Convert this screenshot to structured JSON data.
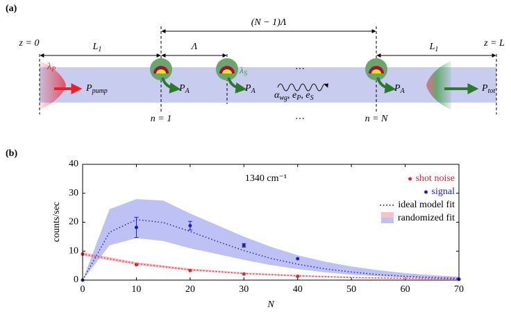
{
  "panel_a": {
    "label": "(a)",
    "z_start": "z = 0",
    "z_end": "z = L",
    "span_total": "(N − 1)Λ",
    "period": "Λ",
    "length_left": {
      "base": "L",
      "sub": "1"
    },
    "length_right": {
      "base": "L",
      "sub": "1"
    },
    "pump_wavelength": {
      "base": "λ",
      "sub": "P"
    },
    "stokes_wavelength": {
      "base": "λ",
      "sub": "S"
    },
    "pump_power": {
      "base": "P",
      "sub": "pump"
    },
    "emitted_power": {
      "base": "P",
      "sub": "A"
    },
    "total_power": {
      "base": "P",
      "sub": "tot"
    },
    "loss": [
      {
        "base": "α",
        "sub": "wg"
      },
      {
        "base": ", e",
        "sub": "P"
      },
      {
        "base": ", e",
        "sub": "S"
      }
    ],
    "ellipsis": "⋯",
    "first_index": "n = 1",
    "last_index": "n = N"
  },
  "chart_data": {
    "type": "scatter",
    "label": "(b)",
    "annotation": "1340 cm⁻¹",
    "xlabel": "N",
    "ylabel": "counts/sec",
    "xlim": [
      0,
      70
    ],
    "xticks": [
      0,
      10,
      20,
      30,
      40,
      50,
      60,
      70
    ],
    "ylim": [
      0,
      40
    ],
    "yticks": [
      0,
      10,
      20,
      30,
      40
    ],
    "legend": "upper right",
    "series": [
      {
        "name": "shot noise",
        "color": "#e8202a",
        "x": [
          0,
          10,
          20,
          30,
          40,
          70
        ],
        "values": [
          9,
          5.3,
          3.3,
          2.1,
          1.3,
          0.3
        ],
        "errors": [
          null,
          null,
          null,
          null,
          null,
          null
        ]
      },
      {
        "name": "signal",
        "color": "#1a1adb",
        "x": [
          0,
          10,
          20,
          30,
          40,
          70
        ],
        "values": [
          0,
          18.2,
          18.8,
          12,
          7.4,
          0.3
        ],
        "errors": [
          null,
          3.5,
          1.5,
          0.6,
          null,
          null
        ]
      }
    ],
    "fits": {
      "name": "ideal model fit",
      "curves": [
        {
          "color": "#e8202a",
          "x": [
            0,
            10,
            20,
            30,
            40,
            50,
            60,
            70
          ],
          "values": [
            9,
            5.7,
            3.6,
            2.3,
            1.5,
            0.9,
            0.6,
            0.4
          ]
        },
        {
          "color": "#1a1adb",
          "x": [
            0,
            5,
            10,
            15,
            20,
            25,
            30,
            35,
            40,
            45,
            50,
            55,
            60,
            65,
            70
          ],
          "values": [
            0,
            16.5,
            20.9,
            19.9,
            16.8,
            13.4,
            10.2,
            7.5,
            5.5,
            3.9,
            2.8,
            1.9,
            1.3,
            0.9,
            0.6
          ]
        }
      ]
    },
    "bands": {
      "name": "randomized fit",
      "areas": [
        {
          "color": "#f4a0a8",
          "x": [
            0,
            10,
            20,
            30,
            40,
            50,
            60,
            70
          ],
          "lower": [
            8.4,
            5.2,
            3.2,
            2,
            1.2,
            0.7,
            0.4,
            0.2
          ],
          "upper": [
            9.6,
            6.2,
            4,
            2.6,
            1.8,
            1.1,
            0.8,
            0.6
          ]
        },
        {
          "color": "#9aa0ee",
          "x": [
            0,
            5,
            10,
            15,
            20,
            25,
            30,
            35,
            40,
            45,
            50,
            55,
            60,
            65,
            70
          ],
          "lower": [
            0,
            12,
            14.5,
            13.5,
            11,
            9,
            7,
            5.2,
            3.8,
            2.7,
            1.9,
            1.3,
            0.9,
            0.6,
            0.4
          ],
          "upper": [
            0,
            24.5,
            28,
            27.5,
            23,
            19,
            15,
            11.5,
            8.6,
            6.4,
            4.7,
            3.4,
            2.4,
            1.7,
            1.2
          ]
        }
      ]
    }
  }
}
